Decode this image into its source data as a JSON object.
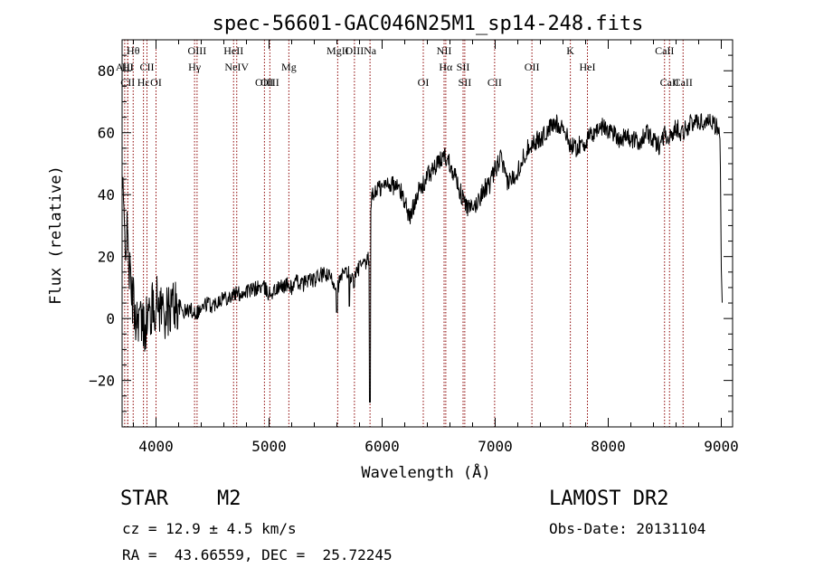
{
  "chart_data": {
    "type": "line",
    "title": "spec-56601-GAC046N25M1_sp14-248.fits",
    "xlabel": "Wavelength (Å)",
    "ylabel": "Flux (relative)",
    "xlim": [
      3700,
      9100
    ],
    "ylim": [
      -35,
      90
    ],
    "xticks": [
      4000,
      5000,
      6000,
      7000,
      8000,
      9000
    ],
    "yticks": [
      -20,
      0,
      20,
      40,
      60,
      80
    ],
    "grid": false,
    "line_color": "#000000",
    "marker_color": "#8b0000",
    "spectral_lines": [
      {
        "label": "Hθ",
        "wavelength": 3798,
        "row": 0
      },
      {
        "label": "AlII",
        "wavelength": 3723,
        "row": 1
      },
      {
        "label": "HI",
        "wavelength": 3750,
        "row": 1
      },
      {
        "label": "CII",
        "wavelength": 3750,
        "row": 2
      },
      {
        "label": "Hε",
        "wavelength": 3889,
        "row": 2
      },
      {
        "label": "CII",
        "wavelength": 3920,
        "row": 1
      },
      {
        "label": "OI",
        "wavelength": 4000,
        "row": 2
      },
      {
        "label": "OIII",
        "wavelength": 4363,
        "row": 0
      },
      {
        "label": "Hγ",
        "wavelength": 4341,
        "row": 1
      },
      {
        "label": "HeII",
        "wavelength": 4686,
        "row": 0
      },
      {
        "label": "NeIV",
        "wavelength": 4714,
        "row": 1
      },
      {
        "label": "OIII",
        "wavelength": 4959,
        "row": 2
      },
      {
        "label": "OIII",
        "wavelength": 5007,
        "row": 2
      },
      {
        "label": "Mg",
        "wavelength": 5175,
        "row": 1
      },
      {
        "label": "MgII",
        "wavelength": 5607,
        "row": 0
      },
      {
        "label": "OIII",
        "wavelength": 5755,
        "row": 0
      },
      {
        "label": "Na",
        "wavelength": 5893,
        "row": 0
      },
      {
        "label": "OI",
        "wavelength": 6364,
        "row": 2
      },
      {
        "label": "NII",
        "wavelength": 6548,
        "row": 0
      },
      {
        "label": "Hα",
        "wavelength": 6563,
        "row": 1
      },
      {
        "label": "SII",
        "wavelength": 6716,
        "row": 1
      },
      {
        "label": "SII",
        "wavelength": 6731,
        "row": 2
      },
      {
        "label": "CII",
        "wavelength": 6995,
        "row": 2
      },
      {
        "label": "OII",
        "wavelength": 7325,
        "row": 1
      },
      {
        "label": "K",
        "wavelength": 7665,
        "row": 0
      },
      {
        "label": "HeI",
        "wavelength": 7816,
        "row": 1
      },
      {
        "label": "CaII",
        "wavelength": 8498,
        "row": 0
      },
      {
        "label": "CaII",
        "wavelength": 8542,
        "row": 2
      },
      {
        "label": "CaII",
        "wavelength": 8662,
        "row": 2
      }
    ],
    "spectrum_anchor_points": [
      [
        3700,
        45
      ],
      [
        3720,
        28
      ],
      [
        3750,
        25
      ],
      [
        3775,
        10
      ],
      [
        3800,
        5
      ],
      [
        3825,
        0
      ],
      [
        3850,
        2
      ],
      [
        3875,
        -3
      ],
      [
        3900,
        -2
      ],
      [
        3950,
        2
      ],
      [
        4000,
        5
      ],
      [
        4050,
        4
      ],
      [
        4100,
        1
      ],
      [
        4150,
        5
      ],
      [
        4200,
        4
      ],
      [
        4250,
        2
      ],
      [
        4300,
        3
      ],
      [
        4350,
        2
      ],
      [
        4400,
        3
      ],
      [
        4450,
        5
      ],
      [
        4500,
        4
      ],
      [
        4550,
        6
      ],
      [
        4600,
        7
      ],
      [
        4650,
        7
      ],
      [
        4700,
        8
      ],
      [
        4750,
        8
      ],
      [
        4800,
        9
      ],
      [
        4850,
        9
      ],
      [
        4900,
        10
      ],
      [
        4950,
        10
      ],
      [
        5000,
        8
      ],
      [
        5050,
        9
      ],
      [
        5100,
        10
      ],
      [
        5150,
        11
      ],
      [
        5200,
        10
      ],
      [
        5250,
        12
      ],
      [
        5300,
        11
      ],
      [
        5350,
        13
      ],
      [
        5400,
        12
      ],
      [
        5450,
        14
      ],
      [
        5500,
        14
      ],
      [
        5550,
        13
      ],
      [
        5600,
        10
      ],
      [
        5650,
        14
      ],
      [
        5700,
        15
      ],
      [
        5750,
        12
      ],
      [
        5800,
        17
      ],
      [
        5850,
        17
      ],
      [
        5890,
        20
      ],
      [
        5900,
        38
      ],
      [
        5950,
        42
      ],
      [
        6000,
        42
      ],
      [
        6050,
        44
      ],
      [
        6100,
        43
      ],
      [
        6150,
        42
      ],
      [
        6200,
        38
      ],
      [
        6250,
        32
      ],
      [
        6300,
        40
      ],
      [
        6350,
        42
      ],
      [
        6400,
        46
      ],
      [
        6450,
        48
      ],
      [
        6500,
        50
      ],
      [
        6550,
        53
      ],
      [
        6600,
        50
      ],
      [
        6650,
        46
      ],
      [
        6700,
        40
      ],
      [
        6750,
        36
      ],
      [
        6800,
        35
      ],
      [
        6850,
        38
      ],
      [
        6900,
        42
      ],
      [
        6950,
        43
      ],
      [
        7000,
        48
      ],
      [
        7050,
        52
      ],
      [
        7100,
        44
      ],
      [
        7150,
        45
      ],
      [
        7200,
        48
      ],
      [
        7250,
        52
      ],
      [
        7300,
        56
      ],
      [
        7350,
        57
      ],
      [
        7400,
        58
      ],
      [
        7450,
        60
      ],
      [
        7500,
        62
      ],
      [
        7550,
        63
      ],
      [
        7600,
        62
      ],
      [
        7650,
        57
      ],
      [
        7700,
        55
      ],
      [
        7750,
        56
      ],
      [
        7800,
        57
      ],
      [
        7850,
        59
      ],
      [
        7900,
        61
      ],
      [
        7950,
        62
      ],
      [
        8000,
        61
      ],
      [
        8050,
        60
      ],
      [
        8100,
        58
      ],
      [
        8150,
        59
      ],
      [
        8200,
        58
      ],
      [
        8250,
        57
      ],
      [
        8300,
        58
      ],
      [
        8350,
        60
      ],
      [
        8400,
        57
      ],
      [
        8450,
        56
      ],
      [
        8500,
        60
      ],
      [
        8550,
        58
      ],
      [
        8600,
        62
      ],
      [
        8650,
        60
      ],
      [
        8700,
        62
      ],
      [
        8750,
        63
      ],
      [
        8800,
        64
      ],
      [
        8850,
        63
      ],
      [
        8900,
        65
      ],
      [
        8950,
        62
      ],
      [
        8990,
        60
      ],
      [
        9000,
        15
      ],
      [
        9010,
        5
      ]
    ]
  },
  "info": {
    "object_type": "STAR",
    "subclass": "M2",
    "cz": "cz = 12.9 ± 4.5 km/s",
    "coords": "RA =  43.66559, DEC =  25.72245",
    "survey": "LAMOST DR2",
    "obs_date": "Obs-Date: 20131104"
  }
}
